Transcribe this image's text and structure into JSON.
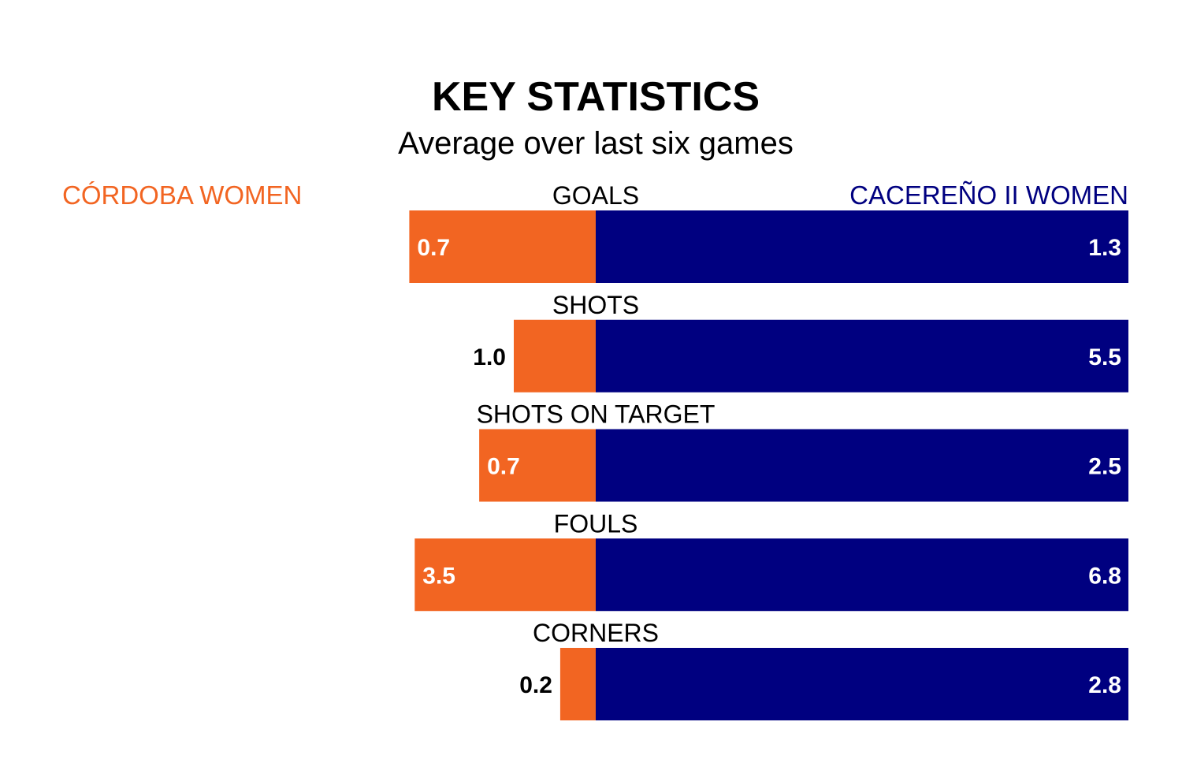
{
  "chart_data": {
    "type": "bar",
    "title": "KEY STATISTICS",
    "subtitle": "Average over last six games",
    "categories": [
      "GOALS",
      "SHOTS",
      "SHOTS ON TARGET",
      "FOULS",
      "CORNERS"
    ],
    "series": [
      {
        "name": "CÓRDOBA WOMEN",
        "color": "#f26522",
        "values": [
          0.7,
          1.0,
          0.7,
          3.5,
          0.2
        ],
        "labels": [
          "0.7",
          "1.0",
          "0.7",
          "3.5",
          "0.2"
        ]
      },
      {
        "name": "CACEREÑO II WOMEN",
        "color": "#000080",
        "values": [
          1.3,
          5.5,
          2.5,
          6.8,
          2.8
        ],
        "labels": [
          "1.3",
          "5.5",
          "2.5",
          "6.8",
          "2.8"
        ]
      }
    ],
    "legend": "top",
    "grid": false
  }
}
